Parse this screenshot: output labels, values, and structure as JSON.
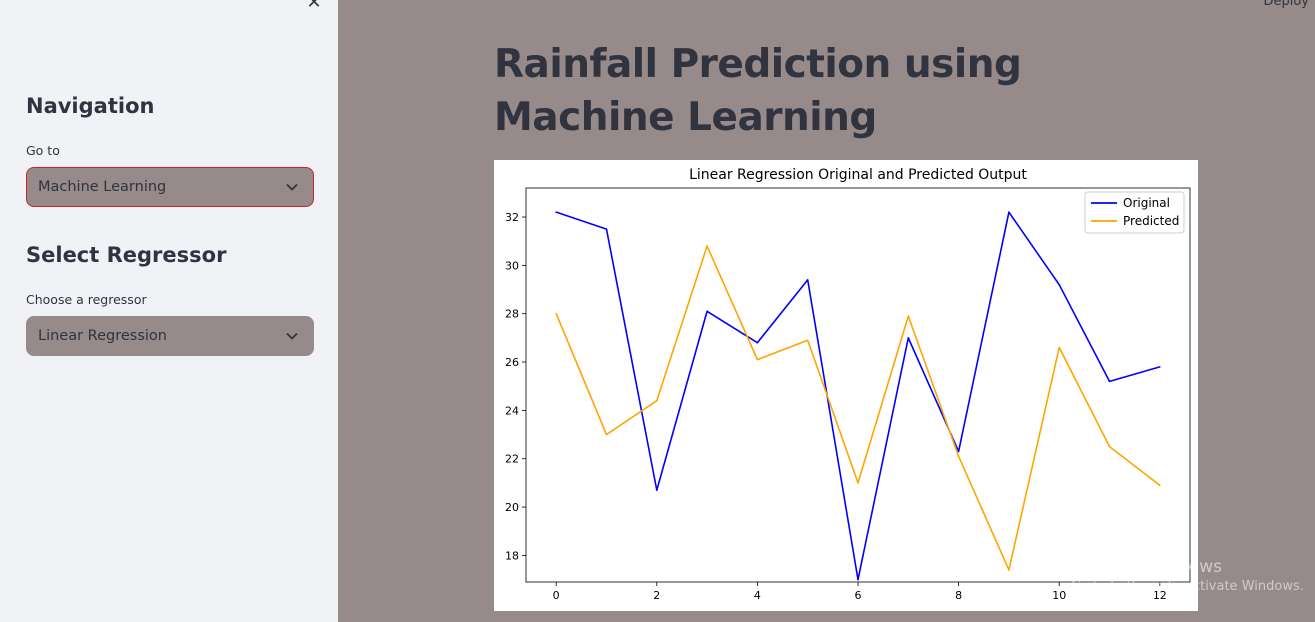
{
  "sidebar": {
    "close_label": "✕",
    "nav_heading": "Navigation",
    "goto_label": "Go to",
    "goto_value": "Machine Learning",
    "regressor_heading": "Select Regressor",
    "regressor_label": "Choose a regressor",
    "regressor_value": "Linear Regression"
  },
  "header": {
    "deploy_label": "Deploy"
  },
  "main": {
    "title": "Rainfall Prediction using Machine Learning"
  },
  "watermark": {
    "line1": "Activate Windows",
    "line2": "Go to Settings to activate Windows."
  },
  "colors": {
    "sidebar_bg": "#f0f2f6",
    "main_bg": "#968a8a",
    "select_border_active": "#c62828",
    "original_line": "#0000ff",
    "predicted_line": "#ffa500"
  },
  "chart_data": {
    "type": "line",
    "title": "Linear Regression Original and Predicted Output",
    "x": [
      0,
      1,
      2,
      3,
      4,
      5,
      6,
      7,
      8,
      9,
      10,
      11,
      12
    ],
    "xticks": [
      "0",
      "2",
      "4",
      "6",
      "8",
      "10",
      "12"
    ],
    "yticks": [
      "18",
      "20",
      "22",
      "24",
      "26",
      "28",
      "30",
      "32"
    ],
    "xlim": [
      -0.6,
      12.6
    ],
    "ylim": [
      16.9,
      33.2
    ],
    "legend": "top-right",
    "grid": false,
    "series": [
      {
        "name": "Original",
        "color": "#0000ff",
        "values": [
          32.2,
          31.5,
          20.7,
          28.1,
          26.8,
          29.4,
          17.0,
          27.0,
          22.3,
          32.2,
          29.2,
          25.2,
          25.8
        ]
      },
      {
        "name": "Predicted",
        "color": "#ffa500",
        "values": [
          28.0,
          23.0,
          24.4,
          30.8,
          26.1,
          26.9,
          21.0,
          27.9,
          22.1,
          17.4,
          26.6,
          22.5,
          20.9
        ]
      }
    ]
  }
}
